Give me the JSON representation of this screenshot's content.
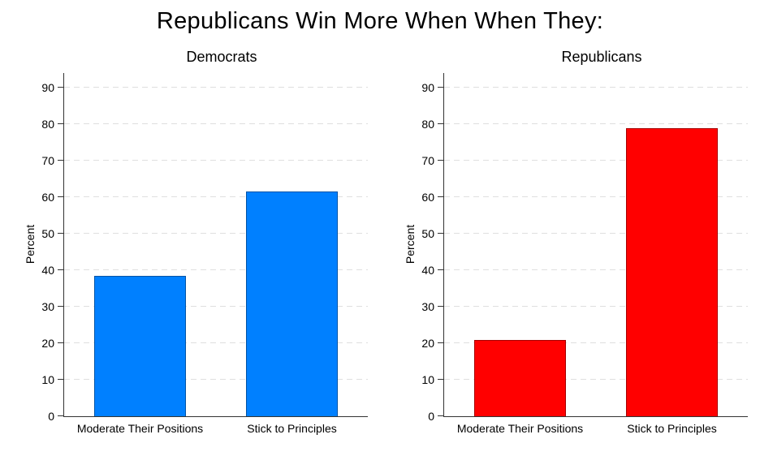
{
  "title": "Republicans Win More When When They:",
  "chart_data": [
    {
      "type": "bar",
      "title": "Democrats",
      "categories": [
        "Moderate Their Positions",
        "Stick to Principles"
      ],
      "values": [
        38.5,
        61.5
      ],
      "bar_color": "#0080ff",
      "ylabel": "Percent",
      "xlabel": "",
      "ylim": [
        0,
        94
      ],
      "yticks": [
        0,
        10,
        20,
        30,
        40,
        50,
        60,
        70,
        80,
        90
      ],
      "grid": "horizontal-dashed",
      "legend": "none"
    },
    {
      "type": "bar",
      "title": "Republicans",
      "categories": [
        "Moderate Their Positions",
        "Stick to Principles"
      ],
      "values": [
        21,
        79
      ],
      "bar_color": "#ff0000",
      "ylabel": "Percent",
      "xlabel": "",
      "ylim": [
        0,
        94
      ],
      "yticks": [
        0,
        10,
        20,
        30,
        40,
        50,
        60,
        70,
        80,
        90
      ],
      "grid": "horizontal-dashed",
      "legend": "none"
    }
  ],
  "colors": {
    "democrat_bar": "#0080ff",
    "republican_bar": "#ff0000",
    "gridline": "#dfdfdf",
    "axis": "#333333",
    "background": "#ffffff",
    "text": "#000000"
  }
}
